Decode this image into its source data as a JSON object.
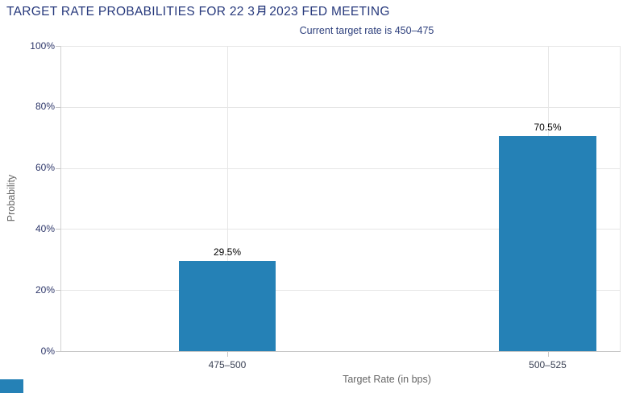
{
  "title": {
    "full": "TARGET RATE PROBABILITIES FOR 22 3月 2023 FED MEETING",
    "part1": "TARGET RATE PROBABILITIES FOR 22 3",
    "month_glyph": "月",
    "part2": "2023 FED MEETING"
  },
  "chart_data": {
    "type": "bar",
    "title": "TARGET RATE PROBABILITIES FOR 22 3月 2023 FED MEETING",
    "subtitle": "Current target rate is 450–475",
    "categories": [
      "475–500",
      "500–525"
    ],
    "values": [
      29.5,
      70.5
    ],
    "value_labels": [
      "29.5%",
      "70.5%"
    ],
    "xlabel": "Target Rate (in bps)",
    "ylabel": "Probability",
    "ylim": [
      0,
      100
    ],
    "ytick_step": 20,
    "yticks": [
      "0%",
      "20%",
      "40%",
      "60%",
      "80%",
      "100%"
    ],
    "grid": true,
    "legend": false,
    "bar_color": "#2581b6"
  },
  "colors": {
    "bar": "#2581b6",
    "title_text": "#27397c",
    "subtitle_text": "#2d3f7c",
    "axis_title_text": "#666666",
    "ytick_text": "#2f386b",
    "xtick_text": "#3a4154",
    "gridline": "#e6e6e6",
    "axis_line": "#c6c6c6",
    "value_label_text": "#000000"
  }
}
